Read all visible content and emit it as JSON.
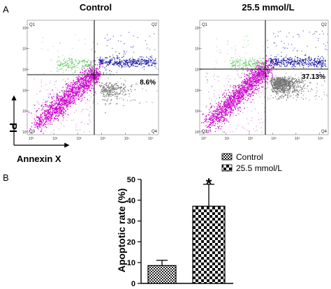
{
  "panel_a": {
    "letter": "A",
    "plots": [
      {
        "title": "Control",
        "percent_label": "8.6%",
        "quadrants": [
          "Q1",
          "Q2",
          "Q3",
          "Q4"
        ],
        "apoptotic_density": 0.3
      },
      {
        "title": "25.5 mmol/L",
        "percent_label": "37.13%",
        "quadrants": [
          "Q1",
          "Q2",
          "Q3",
          "Q4"
        ],
        "apoptotic_density": 1.0
      }
    ],
    "axis_y_label": "PI",
    "axis_x_label": "Annexin X",
    "tick_labels": [
      "10⁰",
      "10¹",
      "10²",
      "10³",
      "10⁴",
      "10⁵"
    ],
    "colors": {
      "live": "#cc00cc",
      "early_apoptotic": "#777777",
      "late_apoptotic": "#1a1aa6",
      "necrotic": "#66cc66"
    }
  },
  "panel_b": {
    "letter": "B",
    "legend": [
      {
        "label": "Control",
        "pattern": "dense"
      },
      {
        "label": "25.5 mmol/L",
        "pattern": "checker"
      }
    ],
    "significance_mark": "*"
  },
  "chart_data": {
    "type": "bar",
    "categories": [
      "Control",
      "25.5 mmol/L"
    ],
    "values": [
      8.6,
      37.13
    ],
    "error": [
      2.5,
      10.5
    ],
    "ylabel": "Apoptotic rate (%)",
    "ylim": [
      0,
      50
    ],
    "yticks": [
      0,
      10,
      20,
      30,
      40,
      50
    ],
    "grid": false,
    "legend_position": "top-right"
  }
}
